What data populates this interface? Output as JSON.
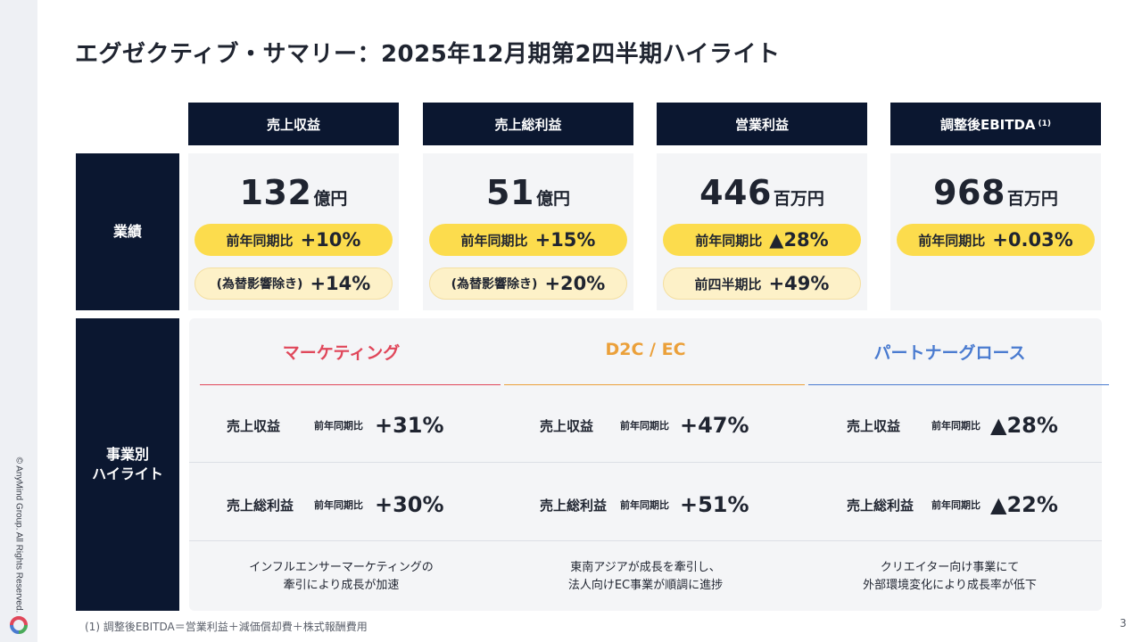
{
  "title": "エグゼクティブ・サマリー：2025年12月期第2四半期ハイライト",
  "copyright": "© AnyMind Group. All Rights Reserved.",
  "footnote": "(1) 調整後EBITDA＝営業利益＋減価償却費＋株式報酬費用",
  "page_number": "3",
  "row_labels": {
    "performance": "業績",
    "highlights_line1": "事業別",
    "highlights_line2": "ハイライト"
  },
  "kpis": [
    {
      "header": "売上収益",
      "value": "132",
      "unit": "億円",
      "pill1_label": "前年同期比",
      "pill1_value": "+10%",
      "pill2_label": "(為替影響除き)",
      "pill2_value": "+14%"
    },
    {
      "header": "売上総利益",
      "value": "51",
      "unit": "億円",
      "pill1_label": "前年同期比",
      "pill1_value": "+15%",
      "pill2_label": "(為替影響除き)",
      "pill2_value": "+20%"
    },
    {
      "header": "営業利益",
      "value": "446",
      "unit": "百万円",
      "pill1_label": "前年同期比",
      "pill1_value": "▲28%",
      "pill2_label": "前四半期比",
      "pill2_value": "+49%"
    },
    {
      "header": "調整後EBITDA",
      "header_note": "(1)",
      "value": "968",
      "unit": "百万円",
      "pill1_label": "前年同期比",
      "pill1_value": "+0.03%"
    }
  ],
  "segments": [
    {
      "name": "マーケティング",
      "color": "#e0475a",
      "revenue_label": "売上収益",
      "revenue_cmp": "前年同期比",
      "revenue_value": "+31%",
      "gp_label": "売上総利益",
      "gp_cmp": "前年同期比",
      "gp_value": "+30%",
      "desc_line1": "インフルエンサーマーケティングの",
      "desc_line2": "牽引により成長が加速"
    },
    {
      "name": "D2C / EC",
      "color": "#eba03a",
      "revenue_label": "売上収益",
      "revenue_cmp": "前年同期比",
      "revenue_value": "+47%",
      "gp_label": "売上総利益",
      "gp_cmp": "前年同期比",
      "gp_value": "+51%",
      "desc_line1": "東南アジアが成長を牽引し、",
      "desc_line2": "法人向けEC事業が順調に進捗"
    },
    {
      "name": "パートナーグロース",
      "color": "#4a7bd0",
      "revenue_label": "売上収益",
      "revenue_cmp": "前年同期比",
      "revenue_value": "▲28%",
      "gp_label": "売上総利益",
      "gp_cmp": "前年同期比",
      "gp_value": "▲22%",
      "desc_line1": "クリエイター向け事業にて",
      "desc_line2": "外部環境変化により成長率が低下"
    }
  ]
}
